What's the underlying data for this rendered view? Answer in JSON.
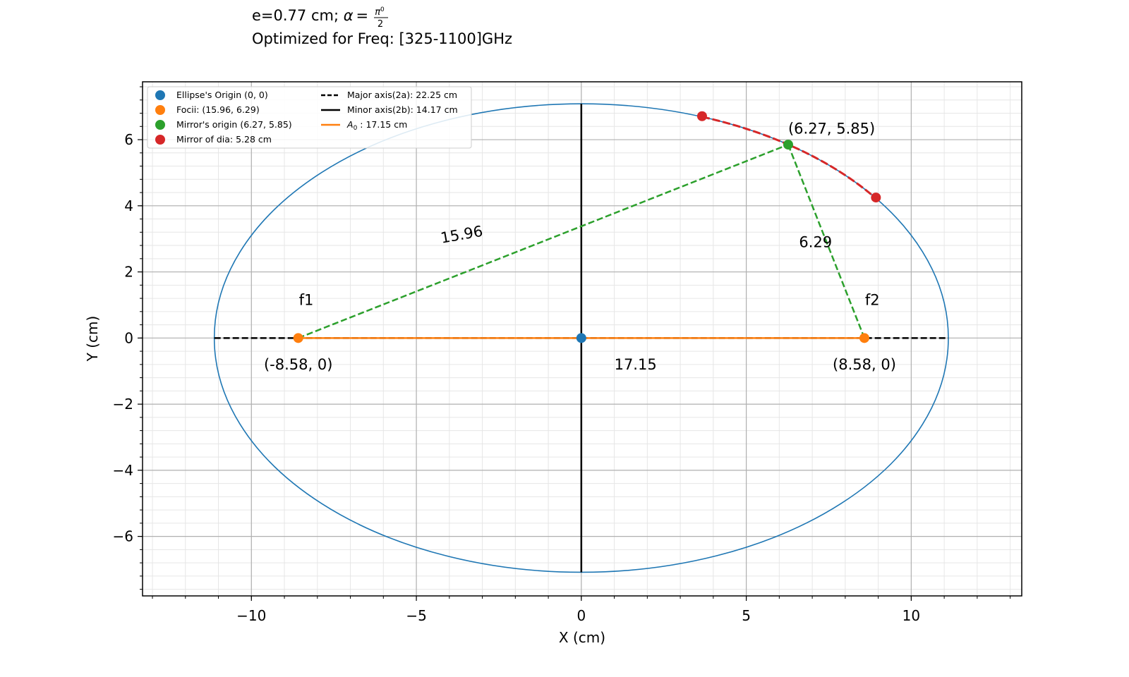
{
  "chart_data": {
    "type": "scatter",
    "title_lines": [
      "e=0.77 cm; α = π⁰/2",
      "Optimized for Freq: [325-1100]GHz"
    ],
    "title": {
      "line1_prefix": "e=0.77 cm; ",
      "line1_alpha": "α",
      "line1_equals": "=",
      "line1_numerator": "π",
      "line1_numerator_exp": "0",
      "line1_denominator": "2",
      "line2": "Optimized for Freq: [325-1100]GHz"
    },
    "xlabel": "X (cm)",
    "ylabel": "Y (cm)",
    "xlim": [
      -13.3,
      13.35
    ],
    "ylim": [
      -7.8,
      7.75
    ],
    "xticks": [
      -10,
      -5,
      0,
      5,
      10
    ],
    "xtick_labels": [
      "−10",
      "−5",
      "0",
      "5",
      "10"
    ],
    "yticks": [
      -6,
      -4,
      -2,
      0,
      2,
      4,
      6
    ],
    "ytick_labels": [
      "−6",
      "−4",
      "−2",
      "0",
      "2",
      "4",
      "6"
    ],
    "minor_tick_step": 1,
    "minor_tick_step_y": 0.4,
    "grid": true,
    "minor_grid": true,
    "legend_position": "top-left",
    "ellipse": {
      "center": [
        0,
        0
      ],
      "semi_major": 11.125,
      "semi_minor": 7.085,
      "color": "#1f77b4"
    },
    "series": [
      {
        "name": "Ellipse's Origin (0, 0)",
        "kind": "point",
        "color": "#1f77b4",
        "points": [
          [
            0,
            0
          ]
        ]
      },
      {
        "name": "Focii: (15.96, 6.29)",
        "kind": "point",
        "color": "#ff7f0e",
        "points": [
          [
            -8.58,
            0
          ],
          [
            8.58,
            0
          ]
        ]
      },
      {
        "name": "Mirror's origin (6.27, 5.85)",
        "kind": "point",
        "color": "#2ca02c",
        "points": [
          [
            6.27,
            5.85
          ]
        ]
      },
      {
        "name": "Mirror of dia: 5.28 cm",
        "kind": "point",
        "color": "#d62728",
        "points": [
          [
            3.66,
            6.71
          ],
          [
            8.93,
            4.25
          ]
        ]
      },
      {
        "name": "Major axis(2a): 22.25 cm",
        "kind": "line",
        "style": "dashed",
        "color": "#000000",
        "points": [
          [
            -11.125,
            0
          ],
          [
            11.125,
            0
          ]
        ]
      },
      {
        "name": "Minor axis(2b): 14.17 cm",
        "kind": "line",
        "style": "solid",
        "color": "#000000",
        "points": [
          [
            0,
            -7.085
          ],
          [
            0,
            7.085
          ]
        ]
      },
      {
        "name_prefix": "A",
        "name_sub": "0",
        "name_suffix": " : 17.15 cm",
        "kind": "line",
        "style": "solid",
        "color": "#ff7f0e",
        "points": [
          [
            -8.58,
            0
          ],
          [
            8.58,
            0
          ]
        ]
      }
    ],
    "rays": [
      {
        "color": "#2ca02c",
        "style": "dashed",
        "points": [
          [
            -8.58,
            0
          ],
          [
            6.27,
            5.85
          ]
        ]
      },
      {
        "color": "#2ca02c",
        "style": "dashed",
        "points": [
          [
            6.27,
            5.85
          ],
          [
            8.58,
            0
          ]
        ]
      }
    ],
    "mirror_arc": {
      "color": "#d62728",
      "style": "dashed",
      "x_range": [
        3.66,
        8.93
      ]
    },
    "annotations": [
      {
        "text": "(6.27, 5.85)",
        "x": 6.27,
        "y": 6.18,
        "anchor": "start"
      },
      {
        "text": "15.96",
        "x": -3.6,
        "y": 2.98,
        "anchor": "middle",
        "rotate": -10
      },
      {
        "text": "6.29",
        "x": 6.6,
        "y": 2.75,
        "anchor": "start"
      },
      {
        "text": "f1",
        "x": -8.58,
        "y": 1.0,
        "anchor": "start",
        "dx": 0.02
      },
      {
        "text": "f2",
        "x": 8.58,
        "y": 1.0,
        "anchor": "start",
        "dx": 0.02
      },
      {
        "text": "(-8.58, 0)",
        "x": -8.58,
        "y": -0.95,
        "anchor": "middle"
      },
      {
        "text": "17.15",
        "x": 1.0,
        "y": -0.95,
        "anchor": "start"
      },
      {
        "text": "(8.58, 0)",
        "x": 8.58,
        "y": -0.95,
        "anchor": "middle"
      }
    ]
  }
}
